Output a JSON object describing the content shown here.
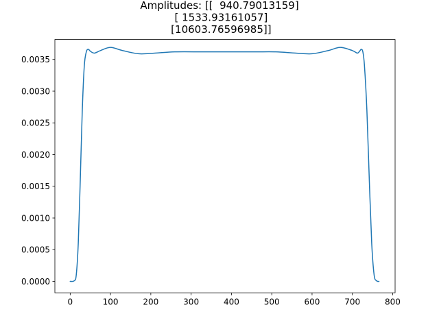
{
  "chart_data": {
    "type": "line",
    "title_lines": [
      "Amplitudes: [[  940.79013159]",
      " [ 1533.93161057]",
      " [10603.76596985]]"
    ],
    "xlabel": "",
    "ylabel": "",
    "xlim": [
      -38,
      806
    ],
    "ylim": [
      -0.00018,
      0.003815
    ],
    "xticks": [
      0,
      100,
      200,
      300,
      400,
      500,
      600,
      700,
      800
    ],
    "xtick_labels": [
      "0",
      "100",
      "200",
      "300",
      "400",
      "500",
      "600",
      "700",
      "800"
    ],
    "yticks": [
      0.0,
      0.0005,
      0.001,
      0.0015,
      0.002,
      0.0025,
      0.003,
      0.0035
    ],
    "ytick_labels": [
      "0.0000",
      "0.0005",
      "0.0010",
      "0.0015",
      "0.0020",
      "0.0025",
      "0.0030",
      "0.0035"
    ],
    "grid": false,
    "series_color": "#1f77b4",
    "series": [
      {
        "x": [
          0,
          10,
          15,
          20,
          25,
          30,
          35,
          40,
          45,
          50,
          60,
          75,
          100,
          130,
          170,
          210,
          260,
          330,
          400,
          460,
          510,
          560,
          600,
          640,
          670,
          700,
          712,
          718,
          722,
          726,
          730,
          736,
          742,
          748,
          754,
          760,
          766
        ],
        "y": [
          0.0,
          1e-05,
          0.0001,
          0.0006,
          0.0016,
          0.0027,
          0.0034,
          0.00362,
          0.00366,
          0.00363,
          0.0036,
          0.00364,
          0.00369,
          0.00364,
          0.00359,
          0.0036,
          0.00362,
          0.00362,
          0.00362,
          0.00362,
          0.00362,
          0.0036,
          0.00359,
          0.00364,
          0.00369,
          0.00364,
          0.0036,
          0.00363,
          0.00366,
          0.00362,
          0.0034,
          0.0027,
          0.0016,
          0.0006,
          0.0001,
          1e-05,
          0.0
        ]
      }
    ]
  }
}
